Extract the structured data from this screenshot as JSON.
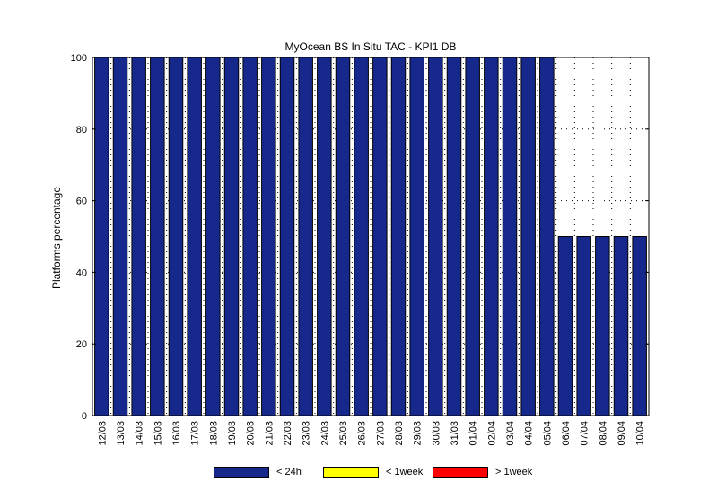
{
  "chart_data": {
    "type": "bar",
    "title": "MyOcean  BS In Situ TAC - KPI1  DB",
    "ylabel": "Platforms percentage",
    "xlabel": "",
    "ylim": [
      0,
      100
    ],
    "yticks": [
      0,
      20,
      40,
      60,
      80,
      100
    ],
    "grid": true,
    "categories": [
      "12/03",
      "13/03",
      "14/03",
      "15/03",
      "16/03",
      "17/03",
      "18/03",
      "19/03",
      "20/03",
      "21/03",
      "22/03",
      "23/03",
      "24/03",
      "25/03",
      "26/03",
      "27/03",
      "28/03",
      "29/03",
      "30/03",
      "31/03",
      "01/04",
      "02/04",
      "03/04",
      "04/04",
      "05/04",
      "06/04",
      "07/04",
      "08/04",
      "09/04",
      "10/04"
    ],
    "series": [
      {
        "name": "< 24h",
        "color": "#17288c",
        "values": [
          100,
          100,
          100,
          100,
          100,
          100,
          100,
          100,
          100,
          100,
          100,
          100,
          100,
          100,
          100,
          100,
          100,
          100,
          100,
          100,
          100,
          100,
          100,
          100,
          100,
          50,
          50,
          50,
          50,
          50
        ]
      },
      {
        "name": "< 1week",
        "color": "#ffff00",
        "values": [
          0,
          0,
          0,
          0,
          0,
          0,
          0,
          0,
          0,
          0,
          0,
          0,
          0,
          0,
          0,
          0,
          0,
          0,
          0,
          0,
          0,
          0,
          0,
          0,
          0,
          0,
          0,
          0,
          0,
          0
        ]
      },
      {
        "name": "> 1week",
        "color": "#ff0000",
        "values": [
          0,
          0,
          0,
          0,
          0,
          0,
          0,
          0,
          0,
          0,
          0,
          0,
          0,
          0,
          0,
          0,
          0,
          0,
          0,
          0,
          0,
          0,
          0,
          0,
          0,
          0,
          0,
          0,
          0,
          0
        ]
      }
    ],
    "legend_position": "bottom"
  }
}
